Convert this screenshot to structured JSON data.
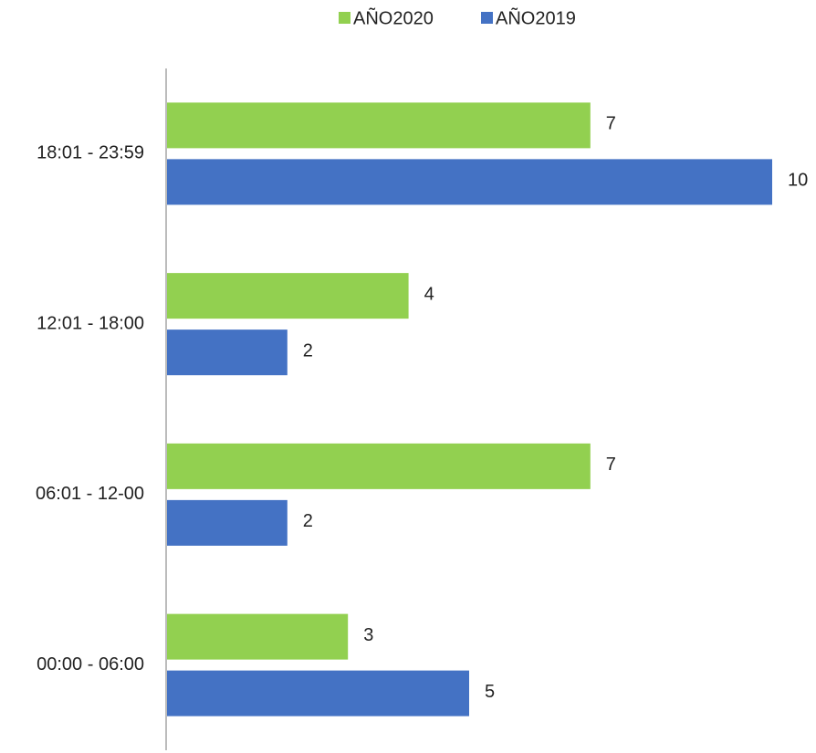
{
  "chart_data": {
    "type": "bar",
    "orientation": "horizontal",
    "categories": [
      "18:01 - 23:59",
      "12:01 - 18:00",
      "06:01 - 12-00",
      "00:00 - 06:00"
    ],
    "series": [
      {
        "name": "AÑO2020",
        "color": "#92d050",
        "values": [
          7,
          4,
          7,
          3
        ]
      },
      {
        "name": "AÑO2019",
        "color": "#4472c4",
        "values": [
          10,
          2,
          2,
          5
        ]
      }
    ],
    "legend": "top"
  }
}
